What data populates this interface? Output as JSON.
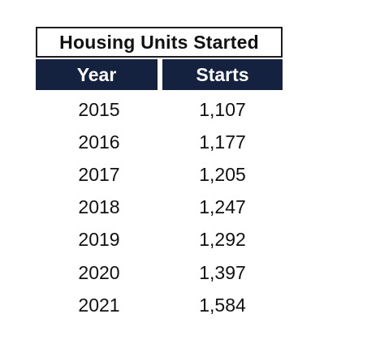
{
  "table": {
    "title": "Housing Units Started",
    "columns": [
      "Year",
      "Starts"
    ],
    "rows": [
      {
        "year": "2015",
        "starts": "1,107"
      },
      {
        "year": "2016",
        "starts": "1,177"
      },
      {
        "year": "2017",
        "starts": "1,205"
      },
      {
        "year": "2018",
        "starts": "1,247"
      },
      {
        "year": "2019",
        "starts": "1,292"
      },
      {
        "year": "2020",
        "starts": "1,397"
      },
      {
        "year": "2021",
        "starts": "1,584"
      }
    ]
  },
  "colors": {
    "header_background": "#14223f",
    "header_text": "#ffffff",
    "body_text": "#111111"
  }
}
